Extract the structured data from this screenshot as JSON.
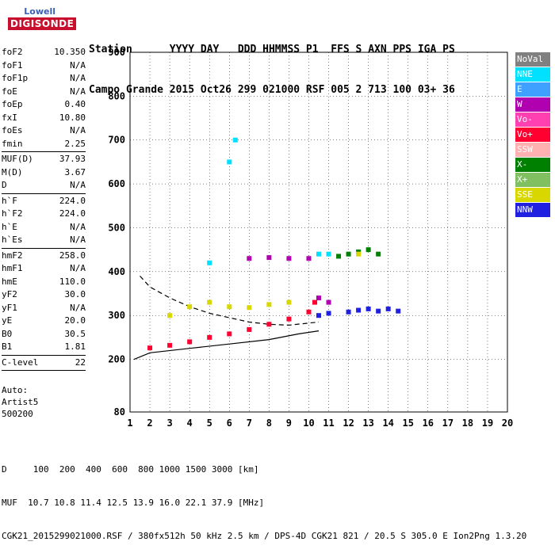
{
  "logo": {
    "line1": "Lowell",
    "line2": "DIGISONDE"
  },
  "header": {
    "labels": "Station      YYYY DAY   DDD HHMMSS P1  FFS S AXN PPS IGA PS",
    "values": "Campo Grande 2015 Oct26 299 021000 RSF 005 2 713 100 03+ 36"
  },
  "params": [
    {
      "k": "foF2",
      "v": "10.350"
    },
    {
      "k": "foF1",
      "v": "N/A"
    },
    {
      "k": "foF1p",
      "v": "N/A"
    },
    {
      "k": "foE",
      "v": "N/A"
    },
    {
      "k": "foEp",
      "v": "0.40"
    },
    {
      "k": "fxI",
      "v": "10.80"
    },
    {
      "k": "foEs",
      "v": "N/A"
    },
    {
      "k": "fmin",
      "v": "2.25",
      "sep": true
    },
    {
      "k": "MUF(D)",
      "v": "37.93"
    },
    {
      "k": "M(D)",
      "v": "3.67"
    },
    {
      "k": "D",
      "v": "N/A",
      "sep": true
    },
    {
      "k": "h`F",
      "v": "224.0"
    },
    {
      "k": "h`F2",
      "v": "224.0"
    },
    {
      "k": "h`E",
      "v": "N/A"
    },
    {
      "k": "h`Es",
      "v": "N/A",
      "sep": true
    },
    {
      "k": "hmF2",
      "v": "258.0"
    },
    {
      "k": "hmF1",
      "v": "N/A"
    },
    {
      "k": "hmE",
      "v": "110.0"
    },
    {
      "k": "yF2",
      "v": "30.0"
    },
    {
      "k": "yF1",
      "v": "N/A"
    },
    {
      "k": "yE",
      "v": "20.0"
    },
    {
      "k": "B0",
      "v": "30.5"
    },
    {
      "k": "B1",
      "v": "1.81",
      "sep": true
    },
    {
      "k": "C-level",
      "v": "22",
      "sep": true
    }
  ],
  "auto": {
    "l1": "Auto:",
    "l2": "Artist5",
    "l3": "500200"
  },
  "legend": [
    {
      "label": "NoVal",
      "color": "#808080"
    },
    {
      "label": "NNE",
      "color": "#00e0ff"
    },
    {
      "label": "E",
      "color": "#40a0ff"
    },
    {
      "label": "W",
      "color": "#b000b0"
    },
    {
      "label": "Vo-",
      "color": "#ff40b0"
    },
    {
      "label": "Vo+",
      "color": "#ff0030"
    },
    {
      "label": "SSW",
      "color": "#ffb0b0"
    },
    {
      "label": "X-",
      "color": "#008000"
    },
    {
      "label": "X+",
      "color": "#80c060"
    },
    {
      "label": "SSE",
      "color": "#d8d800"
    },
    {
      "label": "NNW",
      "color": "#2020e0"
    }
  ],
  "bottom": {
    "d_row": "D     100  200  400  600  800 1000 1500 3000 [km]",
    "muf_row": "MUF  10.7 10.8 11.4 12.5 13.9 16.0 22.1 37.9 [MHz]",
    "footer": "CGK21_2015299021000.RSF / 380fx512h 50 kHz 2.5 km / DPS-4D CGK21 821 / 20.5 S 305.0 E Ion2Png 1.3.20"
  },
  "chart_data": {
    "type": "scatter",
    "xlim": [
      1,
      20
    ],
    "ylim": [
      80,
      900
    ],
    "x_ticks": [
      1,
      2,
      3,
      4,
      5,
      6,
      7,
      8,
      9,
      10,
      11,
      12,
      13,
      14,
      15,
      16,
      17,
      18,
      19,
      20
    ],
    "y_ticks": [
      80,
      200,
      300,
      400,
      500,
      600,
      700,
      800,
      900
    ],
    "grid": true,
    "legend_position": "right",
    "series": [
      {
        "name": "Vo+",
        "color": "#ff0030",
        "points": [
          [
            2,
            226
          ],
          [
            3,
            232
          ],
          [
            4,
            240
          ],
          [
            5,
            250
          ],
          [
            6,
            258
          ],
          [
            7,
            268
          ],
          [
            8,
            280
          ],
          [
            9,
            292
          ],
          [
            10,
            308
          ],
          [
            10.3,
            330
          ]
        ]
      },
      {
        "name": "X-",
        "color": "#008000",
        "points": [
          [
            11.5,
            435
          ],
          [
            12,
            440
          ],
          [
            12.5,
            445
          ],
          [
            13,
            450
          ],
          [
            13.5,
            440
          ]
        ]
      },
      {
        "name": "NNW",
        "color": "#2020e0",
        "points": [
          [
            10.5,
            300
          ],
          [
            11,
            305
          ],
          [
            12,
            308
          ],
          [
            12.5,
            312
          ],
          [
            13,
            315
          ],
          [
            13.5,
            310
          ],
          [
            14,
            315
          ],
          [
            14.5,
            310
          ]
        ]
      },
      {
        "name": "SSE",
        "color": "#d8d800",
        "points": [
          [
            3,
            300
          ],
          [
            4,
            320
          ],
          [
            5,
            330
          ],
          [
            6,
            320
          ],
          [
            7,
            318
          ],
          [
            8,
            325
          ],
          [
            9,
            330
          ],
          [
            12.5,
            440
          ]
        ]
      },
      {
        "name": "W",
        "color": "#b000b0",
        "points": [
          [
            7,
            430
          ],
          [
            8,
            432
          ],
          [
            9,
            430
          ],
          [
            10,
            430
          ],
          [
            10.5,
            340
          ],
          [
            11,
            330
          ]
        ]
      },
      {
        "name": "NNE",
        "color": "#00e0ff",
        "points": [
          [
            5,
            420
          ],
          [
            6,
            650
          ],
          [
            6.3,
            700
          ],
          [
            10.5,
            440
          ],
          [
            11,
            440
          ]
        ]
      }
    ],
    "traces": [
      {
        "kind": "solid",
        "points": [
          [
            1.2,
            200
          ],
          [
            2,
            215
          ],
          [
            4,
            225
          ],
          [
            6,
            235
          ],
          [
            8,
            245
          ],
          [
            9.5,
            258
          ],
          [
            10.5,
            265
          ]
        ]
      },
      {
        "kind": "dashed",
        "points": [
          [
            1.5,
            390
          ],
          [
            2,
            365
          ],
          [
            3,
            340
          ],
          [
            4,
            320
          ],
          [
            5,
            305
          ],
          [
            6,
            295
          ],
          [
            7,
            285
          ],
          [
            8,
            280
          ],
          [
            9,
            278
          ],
          [
            10.5,
            285
          ]
        ]
      }
    ]
  }
}
